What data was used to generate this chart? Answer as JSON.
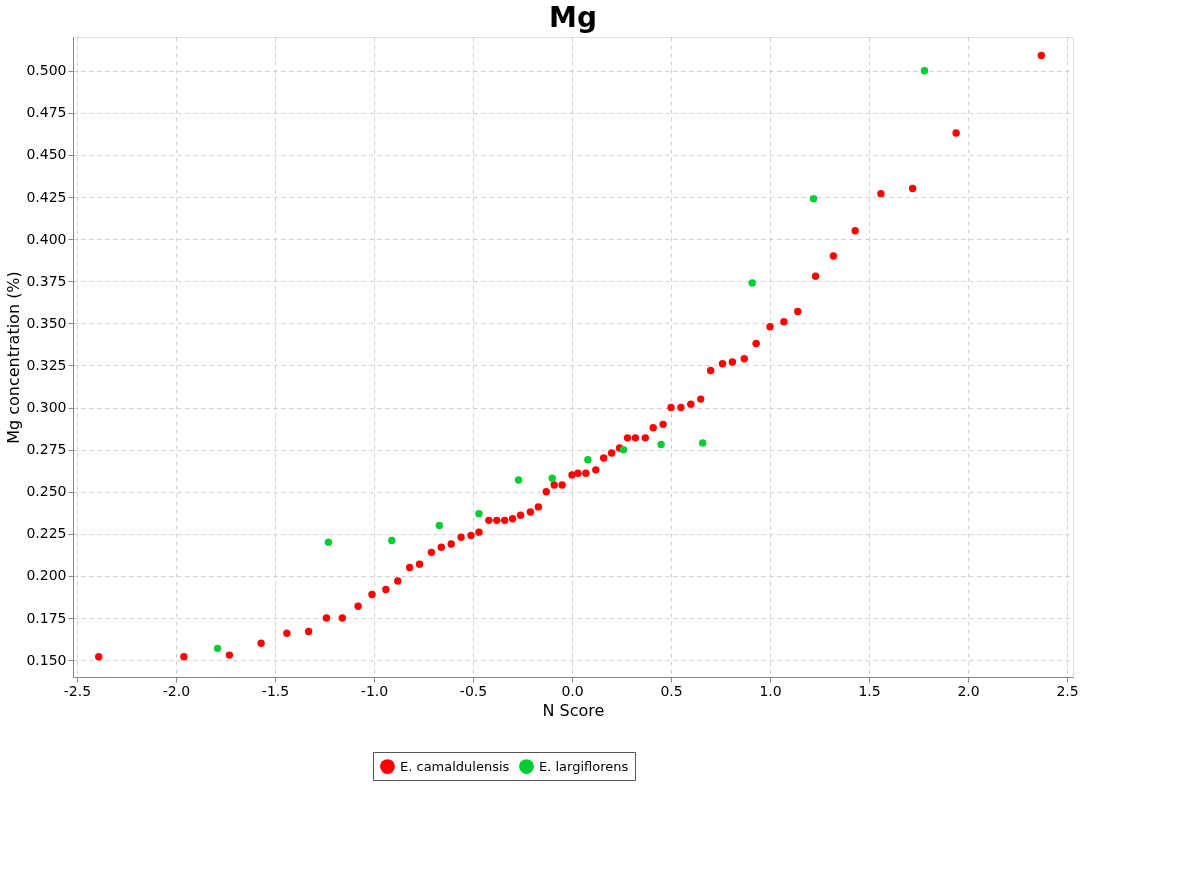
{
  "chart_data": {
    "type": "scatter",
    "title": "Mg",
    "xlabel": "N Score",
    "ylabel": "Mg concentration (%)",
    "xlim": [
      -2.52,
      2.53
    ],
    "ylim": [
      0.14,
      0.52
    ],
    "xticks": [
      {
        "value": -2.5,
        "label": "-2.5"
      },
      {
        "value": -2.0,
        "label": "-2.0"
      },
      {
        "value": -1.5,
        "label": "-1.5"
      },
      {
        "value": -1.0,
        "label": "-1.0"
      },
      {
        "value": -0.5,
        "label": "-0.5"
      },
      {
        "value": 0.0,
        "label": "0.0"
      },
      {
        "value": 0.5,
        "label": "0.5"
      },
      {
        "value": 1.0,
        "label": "1.0"
      },
      {
        "value": 1.5,
        "label": "1.5"
      },
      {
        "value": 2.0,
        "label": "2.0"
      },
      {
        "value": 2.5,
        "label": "2.5"
      }
    ],
    "yticks": [
      {
        "value": 0.15,
        "label": "0.150"
      },
      {
        "value": 0.175,
        "label": "0.175"
      },
      {
        "value": 0.2,
        "label": "0.200"
      },
      {
        "value": 0.225,
        "label": "0.225"
      },
      {
        "value": 0.25,
        "label": "0.250"
      },
      {
        "value": 0.275,
        "label": "0.275"
      },
      {
        "value": 0.3,
        "label": "0.300"
      },
      {
        "value": 0.325,
        "label": "0.325"
      },
      {
        "value": 0.35,
        "label": "0.350"
      },
      {
        "value": 0.375,
        "label": "0.375"
      },
      {
        "value": 0.4,
        "label": "0.400"
      },
      {
        "value": 0.425,
        "label": "0.425"
      },
      {
        "value": 0.45,
        "label": "0.450"
      },
      {
        "value": 0.475,
        "label": "0.475"
      },
      {
        "value": 0.5,
        "label": "0.500"
      }
    ],
    "grid": true,
    "legend": "bottom",
    "marker": "circle",
    "series": [
      {
        "name": "E. camaldulensis",
        "color": "#ff0000",
        "x": [
          -2.39,
          -1.96,
          -1.73,
          -1.57,
          -1.44,
          -1.33,
          -1.24,
          -1.16,
          -1.08,
          -1.01,
          -0.94,
          -0.88,
          -0.82,
          -0.77,
          -0.71,
          -0.66,
          -0.61,
          -0.56,
          -0.51,
          -0.47,
          -0.42,
          -0.38,
          -0.34,
          -0.3,
          -0.26,
          -0.21,
          -0.17,
          -0.13,
          -0.09,
          -0.05,
          0.0,
          0.03,
          0.07,
          0.12,
          0.16,
          0.2,
          0.24,
          0.28,
          0.32,
          0.37,
          0.41,
          0.46,
          0.5,
          0.55,
          0.6,
          0.65,
          0.7,
          0.76,
          0.81,
          0.87,
          0.93,
          1.0,
          1.07,
          1.14,
          1.23,
          1.32,
          1.43,
          1.56,
          1.72,
          1.94,
          2.37
        ],
        "values": [
          0.152,
          0.152,
          0.153,
          0.16,
          0.166,
          0.167,
          0.175,
          0.175,
          0.182,
          0.189,
          0.192,
          0.197,
          0.205,
          0.207,
          0.214,
          0.217,
          0.219,
          0.223,
          0.224,
          0.226,
          0.233,
          0.233,
          0.233,
          0.234,
          0.236,
          0.238,
          0.241,
          0.25,
          0.254,
          0.254,
          0.26,
          0.261,
          0.261,
          0.263,
          0.27,
          0.273,
          0.276,
          0.282,
          0.282,
          0.282,
          0.288,
          0.29,
          0.3,
          0.3,
          0.302,
          0.305,
          0.322,
          0.326,
          0.327,
          0.329,
          0.338,
          0.348,
          0.351,
          0.357,
          0.378,
          0.39,
          0.405,
          0.427,
          0.43,
          0.463,
          0.509
        ]
      },
      {
        "name": "E. largiflorens",
        "color": "#00cc33",
        "x": [
          -1.79,
          -1.23,
          -0.91,
          -0.67,
          -0.47,
          -0.27,
          -0.1,
          0.08,
          0.26,
          0.45,
          0.66,
          0.91,
          1.22,
          1.78
        ],
        "values": [
          0.157,
          0.22,
          0.221,
          0.23,
          0.237,
          0.257,
          0.258,
          0.269,
          0.275,
          0.278,
          0.279,
          0.374,
          0.424,
          0.5
        ]
      }
    ]
  }
}
